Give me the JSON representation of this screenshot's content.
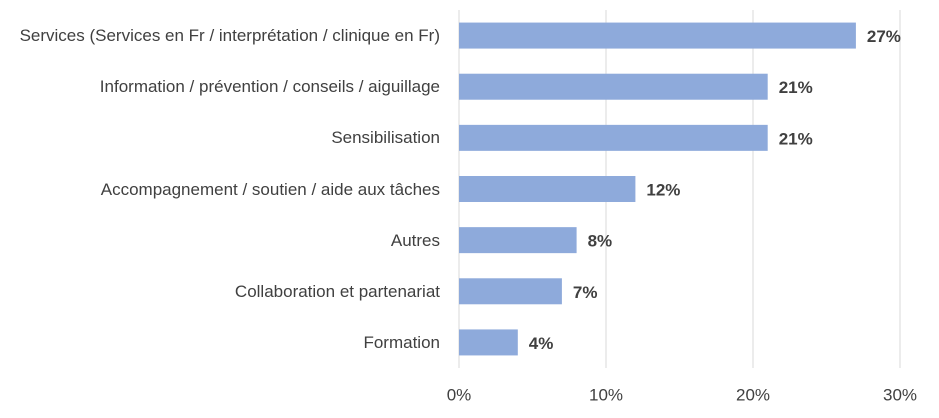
{
  "chart_data": {
    "type": "bar",
    "orientation": "horizontal",
    "categories": [
      "Services (Services en Fr / interprétation / clinique en Fr)",
      "Information / prévention / conseils / aiguillage",
      "Sensibilisation",
      "Accompagnement / soutien / aide aux tâches",
      "Autres",
      "Collaboration et partenariat",
      "Formation"
    ],
    "values": [
      27,
      21,
      21,
      12,
      8,
      7,
      4
    ],
    "value_labels": [
      "27%",
      "21%",
      "21%",
      "12%",
      "8%",
      "7%",
      "4%"
    ],
    "color": "#8eaadb",
    "xlim": [
      0,
      30
    ],
    "xticks": [
      {
        "value": 0,
        "label": "0%"
      },
      {
        "value": 10,
        "label": "10%"
      },
      {
        "value": 20,
        "label": "20%"
      },
      {
        "value": 30,
        "label": "30%"
      }
    ],
    "grid": true
  }
}
